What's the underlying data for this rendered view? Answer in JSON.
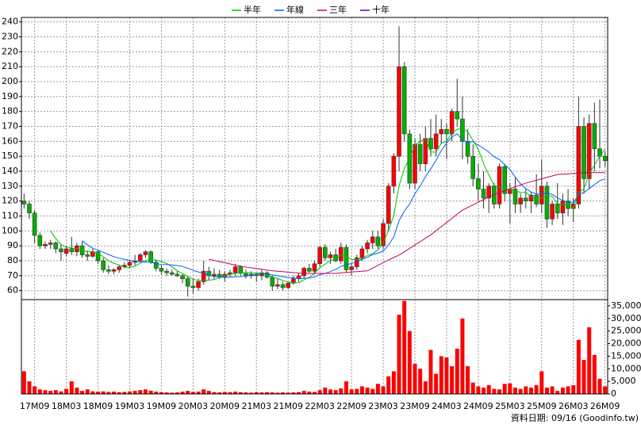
{
  "chart_data": [
    {
      "type": "candlestick",
      "categories": [
        null,
        null,
        "17M09",
        null,
        null,
        null,
        null,
        null,
        "18M03",
        null,
        null,
        null,
        null,
        null,
        "18M09",
        null,
        null,
        null,
        null,
        null,
        "19M03",
        null,
        null,
        null,
        null,
        null,
        "19M09",
        null,
        null,
        null,
        null,
        null,
        "20M03",
        null,
        null,
        null,
        null,
        null,
        "20M09",
        null,
        null,
        null,
        null,
        null,
        "21M03",
        null,
        null,
        null,
        null,
        null,
        "21M09",
        null,
        null,
        null,
        null,
        null,
        "22M03",
        null,
        null,
        null,
        null,
        null,
        "22M09",
        null,
        null,
        null,
        null,
        null,
        "23M03",
        null,
        null,
        null,
        null,
        null,
        "23M09",
        null,
        null,
        null,
        null,
        null,
        "24M03",
        null,
        null,
        null,
        null,
        null,
        "24M09",
        null,
        null,
        null,
        null,
        null,
        "25M03",
        null,
        null,
        null,
        null,
        null,
        "25M09",
        null,
        null,
        null,
        null,
        null,
        "26M03",
        null,
        null,
        null,
        null,
        null,
        "26M09"
      ],
      "open": [
        120,
        118,
        112,
        97,
        90,
        91,
        92,
        88,
        85,
        88,
        86,
        90,
        84,
        83,
        86,
        80,
        74,
        73,
        74,
        76,
        77,
        79,
        80,
        84,
        86,
        79,
        75,
        73,
        72,
        71,
        70,
        68,
        63,
        62,
        66,
        73,
        70,
        71,
        69,
        71,
        72,
        76,
        72,
        70,
        71,
        70,
        72,
        69,
        63,
        64,
        62,
        65,
        68,
        70,
        75,
        73,
        78,
        89,
        82,
        84,
        80,
        89,
        74,
        76,
        82,
        88,
        92,
        96,
        90,
        105,
        130,
        150,
        210,
        165,
        132,
        158,
        145,
        162,
        155,
        165,
        168,
        165,
        180,
        175,
        160,
        150,
        135,
        128,
        122,
        130,
        118,
        143,
        125,
        128,
        118,
        122,
        120,
        124,
        118,
        130,
        108,
        118,
        112,
        120,
        115,
        118,
        170,
        135,
        172,
        155,
        150
      ],
      "high": [
        125,
        120,
        114,
        99,
        93,
        94,
        93,
        91,
        90,
        96,
        92,
        93,
        87,
        88,
        87,
        82,
        77,
        75,
        77,
        79,
        80,
        84,
        85,
        87,
        87,
        81,
        77,
        75,
        74,
        73,
        71,
        70,
        68,
        68,
        80,
        76,
        75,
        74,
        73,
        74,
        78,
        77,
        74,
        73,
        72,
        74,
        73,
        70,
        68,
        66,
        66,
        70,
        72,
        76,
        78,
        80,
        90,
        91,
        86,
        88,
        92,
        91,
        78,
        84,
        90,
        94,
        100,
        100,
        108,
        132,
        152,
        237,
        213,
        168,
        162,
        165,
        170,
        175,
        178,
        175,
        172,
        182,
        202,
        190,
        168,
        158,
        145,
        140,
        132,
        132,
        145,
        145,
        132,
        136,
        125,
        128,
        126,
        138,
        148,
        133,
        120,
        132,
        125,
        128,
        122,
        190,
        176,
        178,
        186,
        188,
        153
      ],
      "low": [
        115,
        108,
        92,
        88,
        88,
        88,
        85,
        80,
        83,
        84,
        83,
        82,
        80,
        82,
        78,
        72,
        71,
        71,
        72,
        75,
        75,
        77,
        79,
        82,
        78,
        73,
        71,
        70,
        70,
        69,
        65,
        56,
        58,
        60,
        64,
        67,
        67,
        68,
        66,
        69,
        70,
        70,
        68,
        68,
        66,
        67,
        68,
        60,
        61,
        60,
        61,
        64,
        66,
        68,
        72,
        72,
        76,
        80,
        78,
        79,
        78,
        72,
        70,
        74,
        80,
        85,
        88,
        88,
        88,
        100,
        125,
        140,
        160,
        128,
        128,
        140,
        140,
        150,
        150,
        158,
        148,
        160,
        170,
        148,
        145,
        130,
        120,
        115,
        112,
        115,
        115,
        120,
        105,
        112,
        112,
        115,
        112,
        116,
        112,
        102,
        104,
        108,
        104,
        110,
        106,
        115,
        125,
        128,
        140,
        142,
        143
      ],
      "close": [
        118,
        112,
        97,
        90,
        91,
        92,
        88,
        86,
        88,
        86,
        90,
        84,
        83,
        86,
        80,
        74,
        73,
        74,
        76,
        77,
        79,
        80,
        84,
        86,
        79,
        75,
        73,
        72,
        71,
        70,
        68,
        63,
        62,
        66,
        73,
        70,
        71,
        69,
        71,
        72,
        76,
        72,
        70,
        71,
        70,
        72,
        69,
        63,
        64,
        62,
        65,
        68,
        70,
        75,
        73,
        78,
        89,
        82,
        84,
        80,
        89,
        74,
        76,
        82,
        88,
        92,
        96,
        90,
        105,
        130,
        150,
        210,
        165,
        132,
        158,
        145,
        162,
        155,
        165,
        168,
        165,
        180,
        175,
        160,
        150,
        135,
        128,
        122,
        130,
        118,
        143,
        125,
        128,
        118,
        122,
        120,
        124,
        118,
        130,
        108,
        118,
        112,
        120,
        115,
        118,
        170,
        135,
        172,
        155,
        150,
        147
      ],
      "up_color": "#ff0000",
      "down_color": "#00b000",
      "wick_color": "#333333",
      "series": [
        {
          "name": "半年",
          "color": "#00c000",
          "values": [
            null,
            null,
            null,
            null,
            null,
            100,
            95,
            90.7,
            89.2,
            88.5,
            88.3,
            87,
            86.2,
            86.2,
            84.8,
            82.8,
            80,
            78.3,
            77.2,
            75.7,
            75.5,
            76.5,
            78.3,
            80.3,
            80.8,
            80.5,
            79.5,
            78.2,
            76,
            73.3,
            71.5,
            69.5,
            67.7,
            66.7,
            67,
            67,
            67.5,
            68.5,
            70,
            71,
            71.5,
            71.8,
            71.7,
            72,
            71.8,
            71.8,
            70.7,
            69.2,
            68.2,
            66.7,
            65.8,
            65.2,
            65.3,
            67.3,
            68.8,
            71.5,
            75.5,
            77.8,
            80.2,
            81,
            83.7,
            83,
            80.8,
            80.8,
            81.5,
            83.5,
            84.7,
            87.3,
            92.2,
            100.2,
            110.5,
            130.2,
            141.7,
            148.7,
            157.5,
            160,
            162,
            152.8,
            152.8,
            158.8,
            160,
            165.8,
            168,
            168.8,
            166.3,
            160.8,
            154.7,
            145,
            137.5,
            130.5,
            129.3,
            127.7,
            127.7,
            127,
            125.7,
            126,
            122.8,
            121.7,
            122,
            123.7,
            123,
            118.3,
            117.7,
            117.2,
            115.2,
            125.5,
            128.3,
            138.3,
            144.2,
            150,
            154.8
          ]
        },
        {
          "name": "年線",
          "color": "#0060ff",
          "values": [
            null,
            null,
            null,
            null,
            null,
            null,
            null,
            null,
            null,
            null,
            null,
            93.5,
            90.6,
            88.4,
            87,
            85.7,
            84.2,
            82.7,
            81.7,
            81,
            80.2,
            79.7,
            79.2,
            79.3,
            79,
            78.1,
            77.5,
            77.4,
            77.2,
            76.8,
            76.2,
            75,
            73.6,
            72.5,
            71.5,
            70.2,
            69.5,
            69,
            68.9,
            68.9,
            69.3,
            69.4,
            69.6,
            70.3,
            70.9,
            71.4,
            71.1,
            70.5,
            70,
            69.4,
            68.8,
            68.5,
            68,
            68.3,
            68.5,
            69.1,
            70.7,
            71.5,
            72.8,
            74.2,
            76.3,
            77.3,
            78.2,
            79.3,
            80.9,
            82.3,
            84.2,
            85.2,
            86.5,
            90.5,
            96,
            106.9,
            113.2,
            118,
            124.9,
            130.1,
            136.3,
            141.5,
            147.3,
            153.8,
            158.8,
            162.9,
            165,
            160.8,
            159.6,
            159.8,
            157.4,
            155.4,
            152.8,
            149.7,
            147.8,
            144.3,
            141.2,
            136,
            131.6,
            128.3,
            126.1,
            124.7,
            124.9,
            125.4,
            124.4,
            122.2,
            120.3,
            119.5,
            118.6,
            124.6,
            125.7,
            128.3,
            131,
            133.6,
            135
          ]
        },
        {
          "name": "三年",
          "color": "#c8005a",
          "values": [
            null,
            null,
            null,
            null,
            null,
            null,
            null,
            null,
            null,
            null,
            null,
            null,
            null,
            null,
            null,
            null,
            null,
            null,
            null,
            null,
            null,
            null,
            null,
            null,
            null,
            null,
            null,
            null,
            null,
            null,
            null,
            null,
            null,
            null,
            null,
            81,
            80.2,
            79.4,
            78.7,
            77.9,
            77.1,
            76.3,
            75.8,
            75.3,
            74.8,
            74.3,
            73.8,
            73.3,
            73,
            72.7,
            72.4,
            72.1,
            71.8,
            71.5,
            71.5,
            71.5,
            71.5,
            71.6,
            71.6,
            71.6,
            71.9,
            72.2,
            72.5,
            72.7,
            73,
            73.3,
            75.1,
            77,
            78.7,
            80.5,
            82.2,
            83.8,
            86.1,
            88.3,
            90.6,
            92.8,
            95.1,
            97.3,
            100.1,
            102.9,
            105.6,
            108.4,
            111.2,
            113.9,
            115.7,
            117.5,
            119.2,
            121,
            122.7,
            124.5,
            125.8,
            127,
            128.3,
            129.5,
            130.8,
            132,
            133,
            133.9,
            134.9,
            135.9,
            136.8,
            137.8,
            138,
            138.2,
            138.5,
            138.7,
            138.9,
            139.1,
            139.1,
            139.1,
            139.1
          ]
        },
        {
          "name": "十年",
          "color": "#6000c0",
          "values": [
            null,
            null,
            null,
            null,
            null,
            null,
            null,
            null,
            null,
            null,
            null,
            null,
            null,
            null,
            null,
            null,
            null,
            null,
            null,
            null,
            null,
            null,
            null,
            null,
            null,
            null,
            null,
            null,
            null,
            null,
            null,
            null,
            null,
            null,
            null,
            null,
            null,
            null,
            null,
            null,
            null,
            null,
            null,
            null,
            null,
            null,
            null,
            null,
            null,
            null,
            null,
            null,
            null,
            null,
            null,
            null,
            null,
            null,
            null,
            null,
            null,
            null,
            null,
            null,
            null,
            null,
            null,
            null,
            null,
            null,
            null,
            null,
            null,
            null,
            null,
            null,
            null,
            null,
            null,
            null,
            null,
            null,
            null,
            null,
            null,
            null,
            null,
            null,
            null,
            null,
            null,
            null,
            null,
            null,
            null,
            null,
            null,
            null,
            null,
            null,
            null,
            null,
            null,
            null,
            null,
            null,
            null,
            null,
            null,
            null,
            null
          ]
        }
      ],
      "ylim": [
        54,
        243
      ],
      "yticks": [
        60,
        70,
        80,
        90,
        100,
        110,
        120,
        130,
        140,
        150,
        160,
        170,
        180,
        190,
        200,
        210,
        220,
        230,
        240
      ],
      "grid": true
    },
    {
      "type": "bar",
      "color": "#ff0000",
      "values": [
        9000,
        5000,
        3000,
        1800,
        1500,
        1200,
        1500,
        1000,
        2000,
        5000,
        2500,
        1200,
        1800,
        1000,
        900,
        1000,
        800,
        900,
        700,
        800,
        1000,
        1200,
        1500,
        1800,
        1300,
        900,
        700,
        600,
        500,
        600,
        900,
        1200,
        800,
        900,
        1800,
        1200,
        700,
        600,
        800,
        700,
        900,
        700,
        600,
        500,
        700,
        600,
        700,
        600,
        500,
        600,
        500,
        600,
        700,
        1200,
        900,
        800,
        1500,
        2500,
        1800,
        1500,
        2200,
        5000,
        1800,
        2000,
        3000,
        2500,
        2000,
        4000,
        3000,
        7000,
        9000,
        31500,
        37000,
        25000,
        12000,
        10000,
        5000,
        17500,
        8000,
        15000,
        14500,
        11000,
        18000,
        30000,
        11000,
        4500,
        3000,
        2500,
        3500,
        2000,
        1800,
        4000,
        4200,
        2500,
        2000,
        3000,
        2500,
        3500,
        9000,
        2500,
        3000,
        1200,
        2500,
        3000,
        3500,
        21500,
        13500,
        26500,
        15500,
        6000,
        3000
      ],
      "ylim": [
        0,
        37500
      ],
      "yticks": [
        0,
        {
          "value": 5000,
          "label": "5,000"
        },
        {
          "value": 10000,
          "label": "10,000"
        },
        {
          "value": 15000,
          "label": "15,000"
        },
        {
          "value": 20000,
          "label": "20,000"
        },
        {
          "value": 25000,
          "label": "25,000"
        },
        {
          "value": 30000,
          "label": "30,000"
        },
        {
          "value": 35000,
          "label": "35,000"
        }
      ],
      "grid": true
    }
  ],
  "footer": "資料日期: 09/16 (Goodinfo.tw)"
}
